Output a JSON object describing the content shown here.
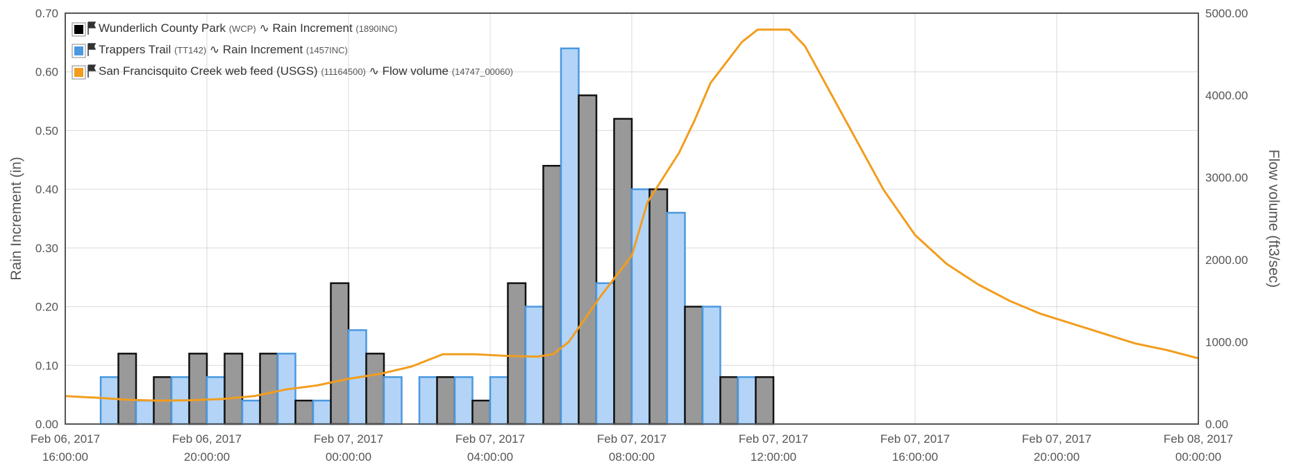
{
  "chart_data": {
    "type": "bar",
    "title": "",
    "legend_position": "top-left",
    "grid": true,
    "x_axis": {
      "start": "2017-02-06 16:00",
      "end": "2017-02-08 00:00",
      "ticks": [
        {
          "date": "Feb 06, 2017",
          "time": "16:00:00"
        },
        {
          "date": "Feb 06, 2017",
          "time": "20:00:00"
        },
        {
          "date": "Feb 07, 2017",
          "time": "00:00:00"
        },
        {
          "date": "Feb 07, 2017",
          "time": "04:00:00"
        },
        {
          "date": "Feb 07, 2017",
          "time": "08:00:00"
        },
        {
          "date": "Feb 07, 2017",
          "time": "12:00:00"
        },
        {
          "date": "Feb 07, 2017",
          "time": "16:00:00"
        },
        {
          "date": "Feb 07, 2017",
          "time": "20:00:00"
        },
        {
          "date": "Feb 08, 2017",
          "time": "00:00:00"
        }
      ]
    },
    "y_left": {
      "label": "Rain Increment (in)",
      "range": [
        0,
        0.7
      ],
      "ticks": [
        "0.00",
        "0.10",
        "0.20",
        "0.30",
        "0.40",
        "0.50",
        "0.60",
        "0.70"
      ]
    },
    "y_right": {
      "label": "Flow volume (ft3/sec)",
      "range": [
        0,
        5000
      ],
      "ticks": [
        "0.00",
        "1000.00",
        "2000.00",
        "3000.00",
        "4000.00",
        "5000.00"
      ]
    },
    "hours": [
      "2017-02-06 16:00",
      "2017-02-06 17:00",
      "2017-02-06 18:00",
      "2017-02-06 19:00",
      "2017-02-06 20:00",
      "2017-02-06 21:00",
      "2017-02-06 22:00",
      "2017-02-06 23:00",
      "2017-02-07 00:00",
      "2017-02-07 01:00",
      "2017-02-07 02:00",
      "2017-02-07 03:00",
      "2017-02-07 04:00",
      "2017-02-07 05:00",
      "2017-02-07 06:00",
      "2017-02-07 07:00",
      "2017-02-07 08:00",
      "2017-02-07 09:00",
      "2017-02-07 10:00",
      "2017-02-07 11:00",
      "2017-02-07 12:00",
      "2017-02-07 13:00",
      "2017-02-07 14:00",
      "2017-02-07 15:00",
      "2017-02-07 16:00",
      "2017-02-07 17:00",
      "2017-02-07 18:00",
      "2017-02-07 19:00",
      "2017-02-07 20:00",
      "2017-02-07 21:00",
      "2017-02-07 22:00",
      "2017-02-07 23:00",
      "2017-02-08 00:00"
    ],
    "series": [
      {
        "name": "Wunderlich County Park",
        "code": "(WCP)",
        "sensor": "Rain Increment",
        "sensor_code": "(1890INC)",
        "type": "bar",
        "axis": "left",
        "color": "#999999",
        "border": "#111111",
        "values": [
          0.0,
          0.12,
          0.08,
          0.12,
          0.12,
          0.12,
          0.04,
          0.24,
          0.12,
          0.0,
          0.08,
          0.04,
          0.24,
          0.44,
          0.56,
          0.52,
          0.4,
          0.2,
          0.08,
          0.08,
          0.0,
          0.0,
          0.0,
          0.0,
          0.0,
          0.0,
          0.0,
          0.0,
          0.0,
          0.0,
          0.0,
          0.0
        ]
      },
      {
        "name": "Trappers Trail",
        "code": "(TT142)",
        "sensor": "Rain Increment",
        "sensor_code": "(1457INC)",
        "type": "bar",
        "axis": "left",
        "color": "#b3d4f7",
        "border": "#4a98e0",
        "values": [
          0.0,
          0.08,
          0.04,
          0.08,
          0.08,
          0.04,
          0.12,
          0.04,
          0.16,
          0.08,
          0.08,
          0.08,
          0.08,
          0.2,
          0.64,
          0.24,
          0.4,
          0.36,
          0.2,
          0.08,
          0.0,
          0.0,
          0.0,
          0.0,
          0.0,
          0.0,
          0.0,
          0.0,
          0.0,
          0.0,
          0.0,
          0.0
        ]
      },
      {
        "name": "San Francisquito Creek web feed (USGS)",
        "code": "(11164500)",
        "sensor": "Flow volume",
        "sensor_code": "(14747_00060)",
        "type": "line",
        "axis": "right",
        "color": "#f29d1d",
        "points": [
          [
            0,
            340
          ],
          [
            1,
            320
          ],
          [
            2,
            295
          ],
          [
            3,
            285
          ],
          [
            4,
            290
          ],
          [
            5,
            305
          ],
          [
            6,
            340
          ],
          [
            7,
            420
          ],
          [
            8,
            470
          ],
          [
            9,
            550
          ],
          [
            10,
            610
          ],
          [
            11,
            700
          ],
          [
            12,
            850
          ],
          [
            13,
            850
          ],
          [
            14,
            830
          ],
          [
            15,
            820
          ],
          [
            15.5,
            850
          ],
          [
            16,
            1000
          ],
          [
            17,
            1550
          ],
          [
            18,
            2050
          ],
          [
            18.5,
            2700
          ],
          [
            19,
            3000
          ],
          [
            19.5,
            3300
          ],
          [
            20,
            3700
          ],
          [
            20.5,
            4150
          ],
          [
            21,
            4400
          ],
          [
            21.5,
            4650
          ],
          [
            22,
            4800
          ],
          [
            23,
            4800
          ],
          [
            23.5,
            4600
          ],
          [
            24,
            4250
          ],
          [
            25,
            3550
          ],
          [
            26,
            2850
          ],
          [
            27,
            2300
          ],
          [
            28,
            1950
          ],
          [
            29,
            1700
          ],
          [
            30,
            1500
          ],
          [
            31,
            1340
          ],
          [
            32,
            1220
          ],
          [
            33,
            1100
          ],
          [
            34,
            980
          ],
          [
            35,
            900
          ],
          [
            36,
            800
          ]
        ]
      }
    ]
  }
}
